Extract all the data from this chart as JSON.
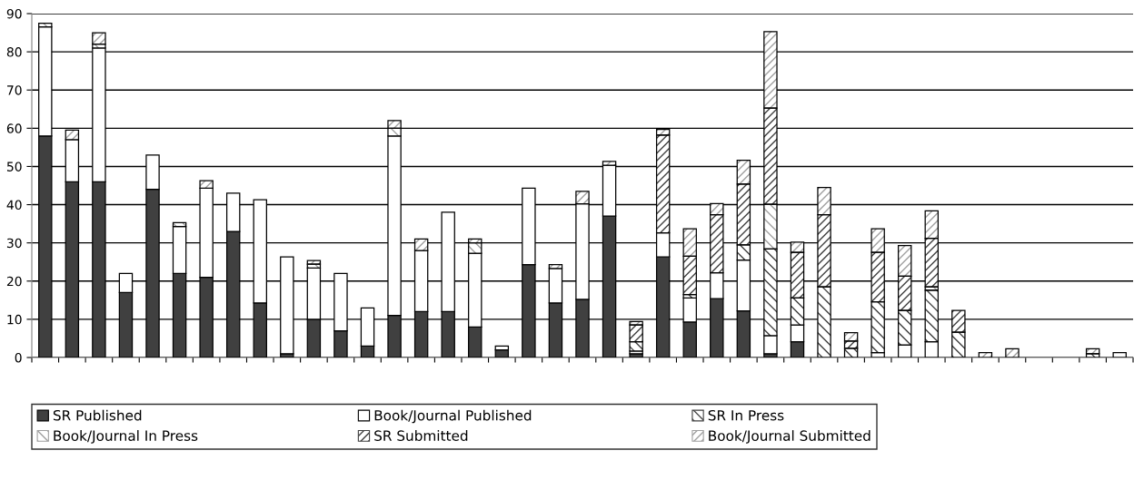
{
  "chart_data": {
    "type": "bar",
    "stacked": true,
    "categories": [
      null,
      null,
      null,
      null,
      null,
      null,
      null,
      null,
      null,
      null,
      null,
      null,
      null,
      null,
      null,
      null,
      null,
      null,
      null,
      null,
      null,
      null,
      null,
      null,
      null,
      null,
      null,
      null,
      null,
      null,
      null,
      null,
      null,
      null,
      null,
      null,
      null,
      null,
      null,
      null,
      null
    ],
    "series": [
      {
        "name": "SR Published",
        "color": "#404040",
        "values": [
          58,
          46,
          46,
          17,
          44,
          22,
          21,
          33,
          14.3,
          1,
          10,
          7,
          3,
          11,
          12,
          12,
          8,
          2,
          24.3,
          14.3,
          15.2,
          37,
          1,
          26.3,
          9.3,
          15.4,
          12.2,
          1,
          4.1,
          0,
          0,
          0,
          0,
          0,
          0,
          0,
          0,
          0,
          0,
          0,
          0
        ]
      },
      {
        "name": "Book/Journal Published",
        "color": "#ffffff",
        "values": [
          28.5,
          11,
          35,
          5,
          9,
          12.3,
          23.3,
          10,
          27,
          25.3,
          13.4,
          15,
          10,
          47,
          16,
          26,
          19.3,
          1,
          20,
          9,
          25,
          13.3,
          0.7,
          6.3,
          6.3,
          6.8,
          13.3,
          4.7,
          4.4,
          0,
          0,
          1.3,
          3.3,
          4.1,
          0,
          0,
          0,
          0,
          0,
          0,
          1.3
        ]
      },
      {
        "name": "SR In Press",
        "color": "#404040",
        "values": [
          0,
          0,
          0,
          0,
          0,
          0,
          0,
          0,
          0,
          0,
          0,
          0,
          0,
          0,
          0,
          0,
          0,
          0,
          0,
          0,
          0,
          0,
          2.4,
          0,
          0.9,
          0,
          4,
          22.7,
          7.1,
          18.5,
          2.4,
          13.3,
          9,
          13.5,
          6.6,
          0,
          0,
          0,
          0,
          1,
          0
        ]
      },
      {
        "name": "Book/Journal In Press",
        "color": "#a0a0a0",
        "values": [
          1,
          0,
          1,
          0,
          0,
          1,
          0,
          0,
          0,
          0,
          1,
          0,
          0,
          2,
          0,
          0,
          2.7,
          0,
          0,
          0,
          0,
          0,
          0,
          0,
          0,
          0,
          0,
          11.7,
          0,
          0,
          0,
          0,
          0,
          0.9,
          0,
          0,
          0,
          0,
          0,
          0,
          0
        ]
      },
      {
        "name": "SR Submitted",
        "color": "#404040",
        "values": [
          0,
          0,
          0,
          0,
          0,
          0,
          0,
          0,
          0,
          0,
          0,
          0,
          0,
          0,
          0,
          0,
          0,
          0,
          0,
          0,
          0,
          0,
          4.4,
          25.6,
          10,
          15.2,
          15.9,
          25.2,
          11.9,
          18.9,
          1.9,
          12.9,
          9,
          12.7,
          5.7,
          0,
          0,
          0,
          0,
          0,
          0
        ]
      },
      {
        "name": "Book/Journal Submitted",
        "color": "#a0a0a0",
        "values": [
          0,
          2.5,
          3,
          0,
          0,
          0,
          2,
          0,
          0,
          0,
          1,
          0,
          0,
          2,
          3,
          0,
          1,
          0,
          0,
          1,
          3.3,
          1,
          0.9,
          1.5,
          7.2,
          2.9,
          6.2,
          20,
          2.7,
          7.1,
          2.2,
          6.2,
          8,
          7.2,
          0,
          1.3,
          2.3,
          0,
          0,
          1.3,
          0
        ]
      }
    ],
    "ylim": [
      0,
      90
    ],
    "yticks": [
      0,
      10,
      20,
      30,
      40,
      50,
      60,
      70,
      80,
      90
    ],
    "grid": "y",
    "legend": "bottom",
    "tick_labels": "y"
  }
}
